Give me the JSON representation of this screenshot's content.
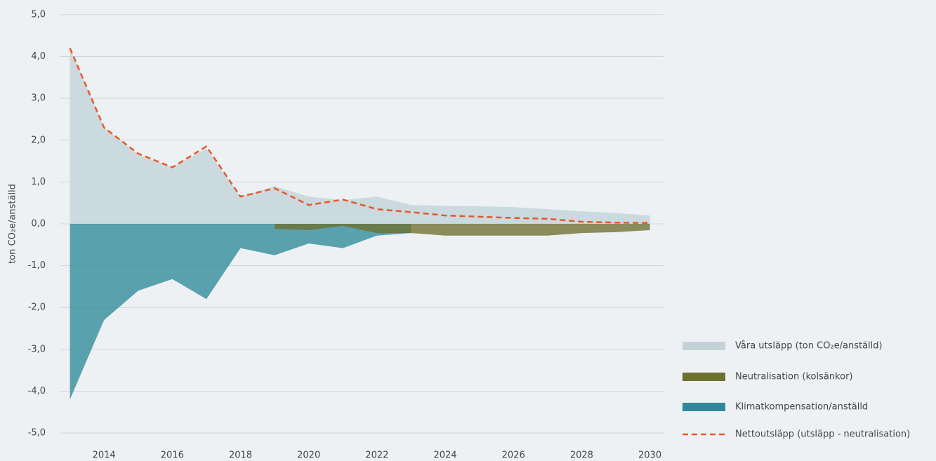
{
  "chart_data": {
    "type": "area",
    "y_label": "ton CO₂e/anställd",
    "x": [
      2013,
      2014,
      2015,
      2016,
      2017,
      2018,
      2019,
      2020,
      2021,
      2022,
      2023,
      2024,
      2025,
      2026,
      2027,
      2028,
      2029,
      2030
    ],
    "series": [
      {
        "name": "Våra utsläpp (ton CO₂e/anställd)",
        "type": "area",
        "color": "#c2d3d7",
        "values": [
          4.2,
          2.3,
          1.65,
          1.35,
          1.8,
          0.65,
          0.9,
          0.65,
          0.57,
          0.65,
          0.45,
          0.43,
          0.42,
          0.4,
          0.35,
          0.3,
          0.26,
          0.2
        ]
      },
      {
        "name": "Neutralisation (kolsänkor)",
        "type": "area",
        "color": "#6e7030",
        "values": [
          null,
          null,
          null,
          null,
          null,
          null,
          -0.12,
          -0.15,
          -0.05,
          -0.22,
          -0.22,
          -0.28,
          -0.28,
          -0.28,
          -0.28,
          -0.22,
          -0.2,
          -0.15
        ]
      },
      {
        "name": "Klimatkompensation/anställd",
        "type": "area",
        "color": "#2e8a99",
        "values": [
          -4.2,
          -2.3,
          -1.6,
          -1.32,
          -1.8,
          -0.58,
          -0.75,
          -0.47,
          -0.58,
          -0.28,
          -0.22,
          null,
          null,
          null,
          null,
          null,
          null,
          null
        ]
      },
      {
        "name": "Nettoutsläpp (utsläpp - neutralisation)",
        "type": "line",
        "dashed": true,
        "color": "#e8572a",
        "values": [
          4.2,
          2.3,
          1.68,
          1.35,
          1.85,
          0.65,
          0.85,
          0.45,
          0.58,
          0.35,
          0.28,
          0.2,
          0.17,
          0.14,
          0.12,
          0.05,
          0.03,
          0.02
        ]
      }
    ],
    "draw_order": [
      0,
      2,
      1,
      3
    ],
    "xlim": [
      2012.7,
      2030.4
    ],
    "xticks": [
      2014,
      2016,
      2018,
      2020,
      2022,
      2024,
      2026,
      2028,
      2030
    ],
    "ylim": [
      -5.2,
      5.2
    ],
    "yticks": [
      {
        "value": 5,
        "label": "5,0"
      },
      {
        "value": 4,
        "label": "4,0"
      },
      {
        "value": 3,
        "label": "3,0"
      },
      {
        "value": 2,
        "label": "2,0"
      },
      {
        "value": 1,
        "label": "1,0"
      },
      {
        "value": 0,
        "label": "0,0"
      },
      {
        "value": -1,
        "label": "-1,0"
      },
      {
        "value": -2,
        "label": "-2,0"
      },
      {
        "value": -3,
        "label": "-3,0"
      },
      {
        "value": -4,
        "label": "-4,0"
      },
      {
        "value": -5,
        "label": "-5,0"
      }
    ],
    "grid": true,
    "legend": "right"
  }
}
